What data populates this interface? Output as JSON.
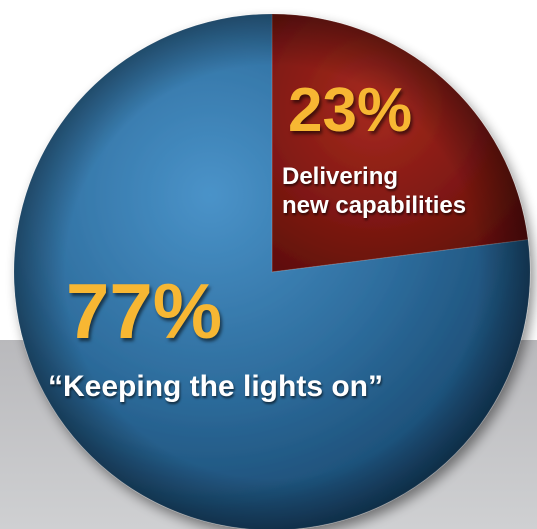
{
  "chart_data": {
    "type": "pie",
    "slices": [
      {
        "value": 23,
        "percent_label": "23%",
        "caption_lines": [
          "Delivering",
          "new capabilities"
        ],
        "color": "#8b1a14"
      },
      {
        "value": 77,
        "percent_label": "77%",
        "caption_lines": [
          "“Keeping the lights on”"
        ],
        "color": "#2f6f9f"
      }
    ],
    "percent_color": "#f7b733",
    "caption_color": "#ffffff",
    "background_band_color": "#c4c4c6"
  }
}
